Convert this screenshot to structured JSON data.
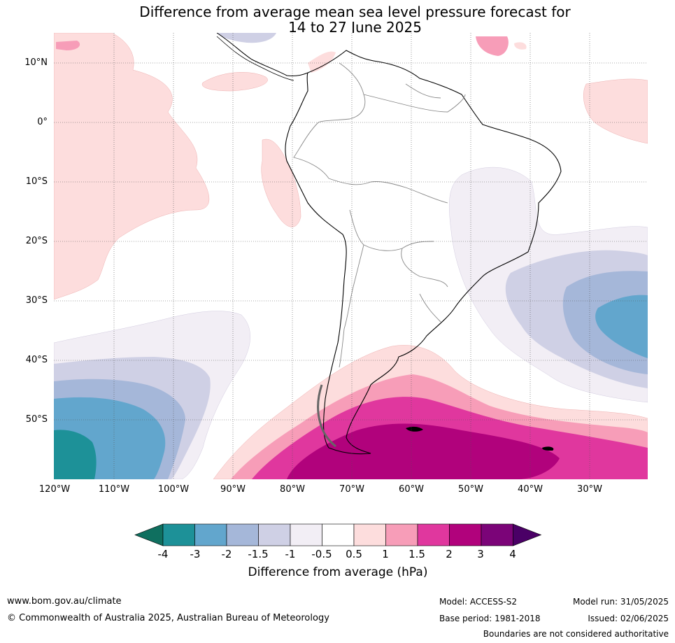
{
  "title": {
    "line1": "Difference from average mean sea level pressure forecast for",
    "line2": "14 to 27 June 2025"
  },
  "map": {
    "lat_labels": [
      "10°N",
      "0°",
      "10°S",
      "20°S",
      "30°S",
      "40°S",
      "50°S"
    ],
    "lon_labels": [
      "120°W",
      "110°W",
      "100°W",
      "90°W",
      "80°W",
      "70°W",
      "60°W",
      "50°W",
      "40°W",
      "30°W"
    ]
  },
  "colorbar": {
    "label": "Difference from average (hPa)",
    "ticks": [
      "-4",
      "-3",
      "-2",
      "-1.5",
      "-1",
      "-0.5",
      "0.5",
      "1",
      "1.5",
      "2",
      "3",
      "4"
    ],
    "colors": [
      "#0f6f5f",
      "#1d9198",
      "#62a6cd",
      "#a5b7d9",
      "#cfd0e5",
      "#f2eef5",
      "#ffffff",
      "#fddddd",
      "#f79db8",
      "#e0379e",
      "#b1027c",
      "#7b0478",
      "#4a0066"
    ]
  },
  "footer": {
    "website": "www.bom.gov.au/climate",
    "copyright": "© Commonwealth of Australia 2025, Australian Bureau of Meteorology",
    "model": "Model: ACCESS-S2",
    "base_period": "Base period: 1981-2018",
    "model_run": "Model run: 31/05/2025",
    "issued": "Issued: 02/06/2025",
    "disclaimer": "Boundaries are not considered authoritative"
  }
}
